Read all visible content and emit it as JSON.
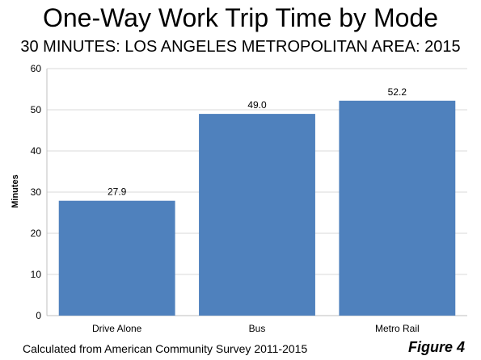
{
  "header": {
    "title": "One-Way Work Trip Time by Mode",
    "subtitle": "30 MINUTES: LOS ANGELES METROPOLITAN AREA: 2015"
  },
  "footer": {
    "source": "Calculated from American Community Survey 2011-2015",
    "figure_label": "Figure 4"
  },
  "colors": {
    "bar": "#4f81bd",
    "grid": "#d9d9d9",
    "axis": "#bfbfbf"
  },
  "chart_data": {
    "type": "bar",
    "categories": [
      "Drive Alone",
      "Bus",
      "Metro Rail"
    ],
    "values": [
      27.9,
      49.0,
      52.2
    ],
    "value_labels": [
      "27.9",
      "49.0",
      "52.2"
    ],
    "title": "One-Way Work Trip Time by Mode",
    "subtitle": "30 MINUTES: LOS ANGELES METROPOLITAN AREA: 2015",
    "xlabel": "",
    "ylabel": "Minutes",
    "ylim": [
      0,
      60
    ],
    "yticks": [
      0,
      10,
      20,
      30,
      40,
      50,
      60
    ],
    "grid": true,
    "legend": "none"
  }
}
